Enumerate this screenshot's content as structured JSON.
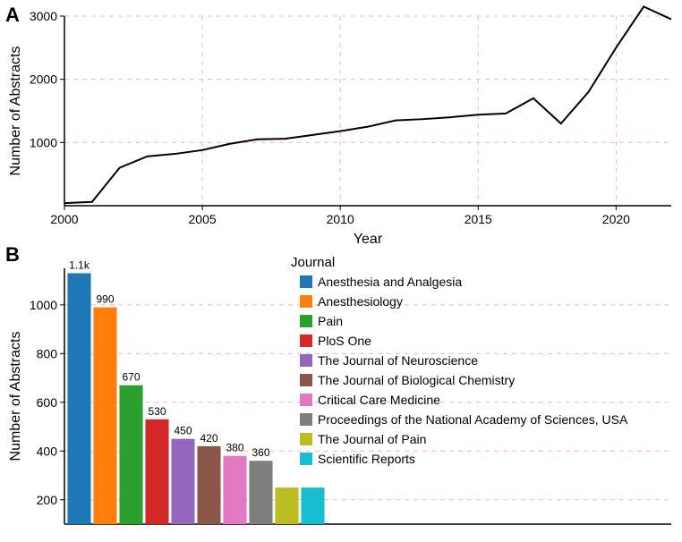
{
  "panelA": {
    "label": "A",
    "type": "line",
    "ylabel": "Number of Abstracts",
    "xlabel": "Year",
    "xlim": [
      2000,
      2022
    ],
    "ylim": [
      0,
      3000
    ],
    "xticks": [
      2000,
      2005,
      2010,
      2015,
      2020
    ],
    "yticks": [
      1000,
      2000,
      3000
    ],
    "grid_color": "#f5b5b5",
    "line_color": "#000000",
    "line_width": 2,
    "background": "#ffffff",
    "data": [
      {
        "x": 2000,
        "y": 40
      },
      {
        "x": 2001,
        "y": 60
      },
      {
        "x": 2002,
        "y": 600
      },
      {
        "x": 2003,
        "y": 780
      },
      {
        "x": 2004,
        "y": 820
      },
      {
        "x": 2005,
        "y": 880
      },
      {
        "x": 2006,
        "y": 980
      },
      {
        "x": 2007,
        "y": 1050
      },
      {
        "x": 2008,
        "y": 1060
      },
      {
        "x": 2009,
        "y": 1120
      },
      {
        "x": 2010,
        "y": 1180
      },
      {
        "x": 2011,
        "y": 1250
      },
      {
        "x": 2012,
        "y": 1350
      },
      {
        "x": 2013,
        "y": 1370
      },
      {
        "x": 2014,
        "y": 1400
      },
      {
        "x": 2015,
        "y": 1440
      },
      {
        "x": 2016,
        "y": 1460
      },
      {
        "x": 2017,
        "y": 1700
      },
      {
        "x": 2018,
        "y": 1300
      },
      {
        "x": 2019,
        "y": 1800
      },
      {
        "x": 2020,
        "y": 2500
      },
      {
        "x": 2021,
        "y": 3150
      },
      {
        "x": 2022,
        "y": 2950
      }
    ]
  },
  "panelB": {
    "label": "B",
    "type": "bar",
    "ylabel": "Number of Abstracts",
    "legend_title": "Journal",
    "ylim": [
      100,
      1150
    ],
    "yticks": [
      200,
      400,
      600,
      800,
      1000
    ],
    "grid_color": "#f5b5b5",
    "background": "#ffffff",
    "bar_width": 0.9,
    "bars": [
      {
        "label": "1.1k",
        "value": 1130,
        "color": "#1f77b4",
        "name": "Anesthesia and Analgesia"
      },
      {
        "label": "990",
        "value": 990,
        "color": "#ff7f0e",
        "name": "Anesthesiology"
      },
      {
        "label": "670",
        "value": 670,
        "color": "#2ca02c",
        "name": "Pain"
      },
      {
        "label": "530",
        "value": 530,
        "color": "#d62728",
        "name": "PloS One"
      },
      {
        "label": "450",
        "value": 450,
        "color": "#9467bd",
        "name": "The Journal of Neuroscience"
      },
      {
        "label": "420",
        "value": 420,
        "color": "#8c564b",
        "name": "The Journal of Biological Chemistry"
      },
      {
        "label": "380",
        "value": 380,
        "color": "#e377c2",
        "name": "Critical Care Medicine"
      },
      {
        "label": "360",
        "value": 360,
        "color": "#7f7f7f",
        "name": "Proceedings of the National Academy of Sciences, USA"
      },
      {
        "label": "",
        "value": 250,
        "color": "#bcbd22",
        "name": "The Journal of Pain"
      },
      {
        "label": "",
        "value": 250,
        "color": "#17becf",
        "name": "Scientific Reports"
      }
    ]
  }
}
